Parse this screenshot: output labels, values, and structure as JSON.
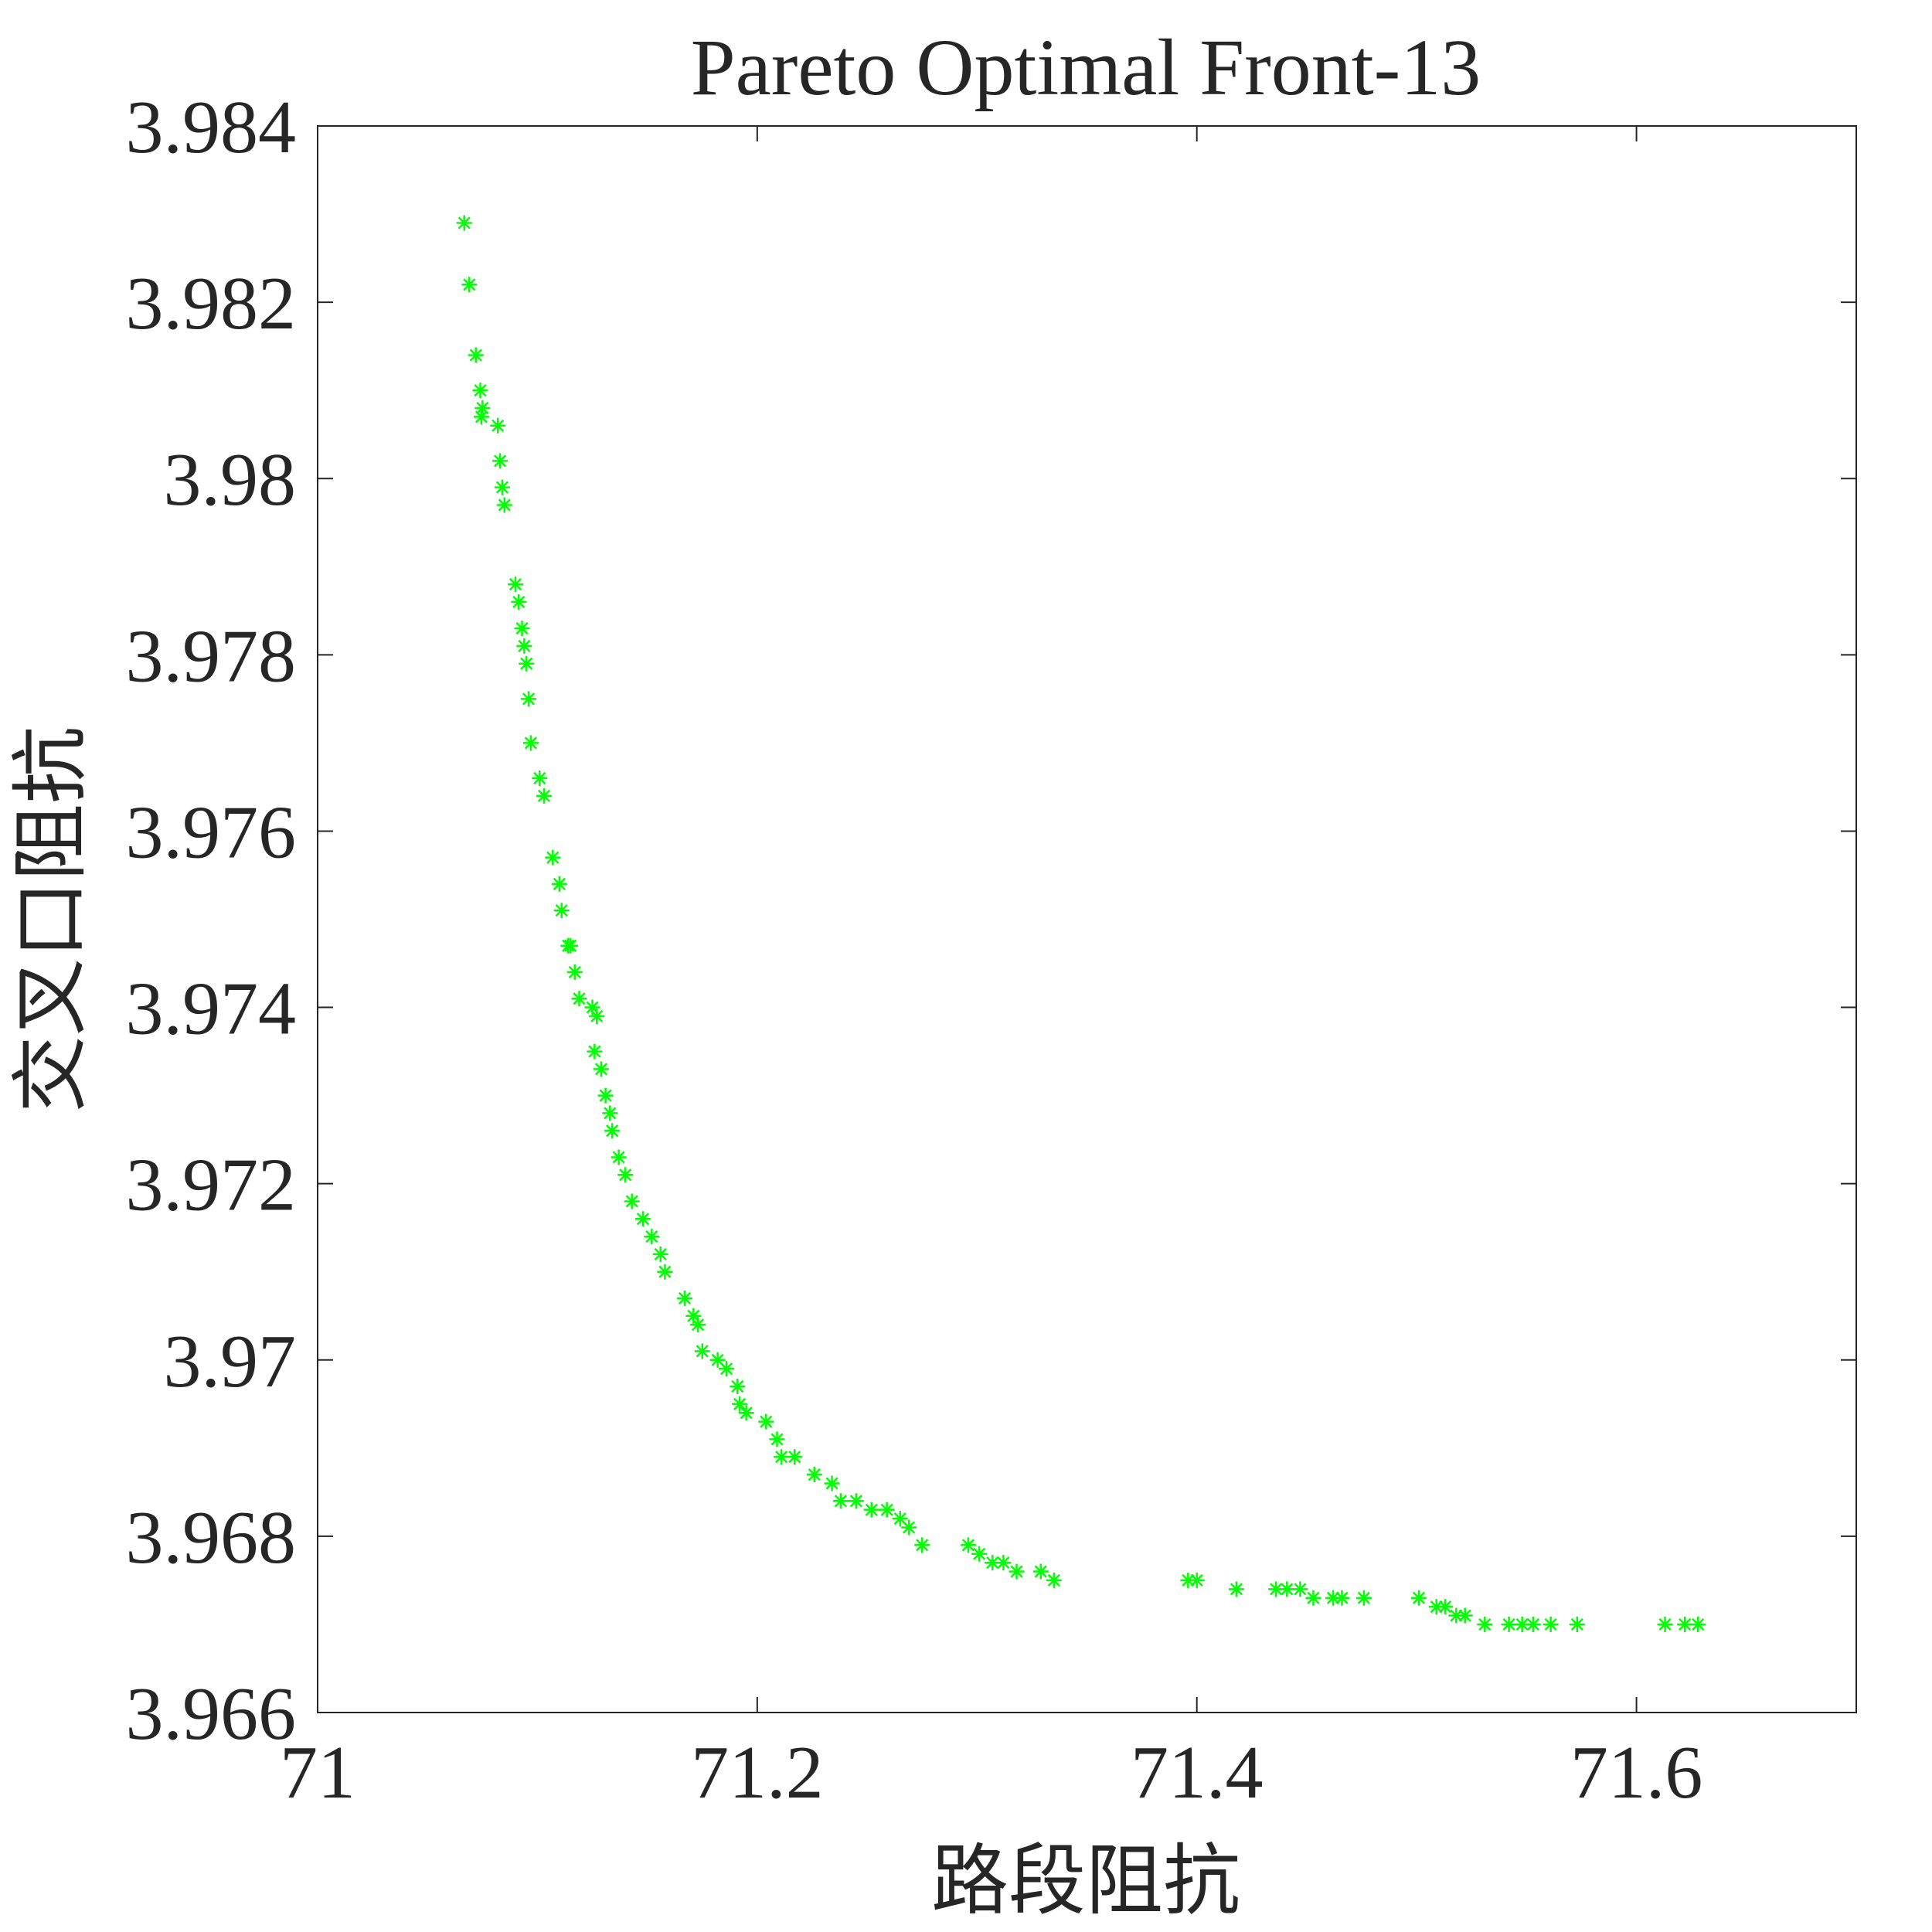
{
  "chart_data": {
    "type": "scatter",
    "title": "Pareto Optimal Front-13",
    "x_label": "路段阻抗",
    "y_label": "交叉口阻抗",
    "xlim": [
      71,
      71.7
    ],
    "xticks": [
      71,
      71.2,
      71.4,
      71.6
    ],
    "ylim": [
      3.966,
      3.984
    ],
    "yticks": [
      3.966,
      3.968,
      3.97,
      3.972,
      3.974,
      3.976,
      3.978,
      3.98,
      3.982,
      3.984
    ],
    "marker": "asterisk",
    "color": "#00ff00",
    "grid": false,
    "box": true,
    "x": [
      71.0667,
      71.069,
      71.072,
      71.074,
      71.075,
      71.0745,
      71.082,
      71.083,
      71.084,
      71.085,
      71.09,
      71.0915,
      71.093,
      71.094,
      71.095,
      71.096,
      71.097,
      71.101,
      71.103,
      71.107,
      71.11,
      71.111,
      71.114,
      71.115,
      71.117,
      71.119,
      71.125,
      71.127,
      71.126,
      71.129,
      71.131,
      71.133,
      71.134,
      71.137,
      71.14,
      71.143,
      71.148,
      71.152,
      71.156,
      71.158,
      71.167,
      71.171,
      71.173,
      71.175,
      71.182,
      71.186,
      71.191,
      71.192,
      71.195,
      71.204,
      71.209,
      71.211,
      71.217,
      71.226,
      71.234,
      71.238,
      71.245,
      71.252,
      71.259,
      71.265,
      71.269,
      71.275,
      71.296,
      71.301,
      71.307,
      71.312,
      71.318,
      71.329,
      71.335,
      71.396,
      71.4,
      71.418,
      71.436,
      71.441,
      71.447,
      71.453,
      71.462,
      71.466,
      71.476,
      71.501,
      71.509,
      71.513,
      71.518,
      71.522,
      71.531,
      71.542,
      71.548,
      71.553,
      71.561,
      71.573,
      71.613,
      71.622,
      71.628
    ],
    "y": [
      3.9829,
      3.9822,
      3.9814,
      3.981,
      3.9808,
      3.9807,
      3.9806,
      3.9802,
      3.9799,
      3.9797,
      3.9788,
      3.9786,
      3.9783,
      3.9781,
      3.9779,
      3.9775,
      3.977,
      3.9766,
      3.9764,
      3.9757,
      3.9754,
      3.9751,
      3.9747,
      3.9747,
      3.9744,
      3.9741,
      3.974,
      3.9739,
      3.9735,
      3.9733,
      3.973,
      3.9728,
      3.9726,
      3.9723,
      3.9721,
      3.9718,
      3.9716,
      3.9714,
      3.9712,
      3.971,
      3.9707,
      3.9705,
      3.9704,
      3.9701,
      3.97,
      3.9699,
      3.9697,
      3.9695,
      3.9694,
      3.9693,
      3.9691,
      3.9689,
      3.9689,
      3.9687,
      3.9686,
      3.9684,
      3.9684,
      3.9683,
      3.9683,
      3.9682,
      3.9681,
      3.9679,
      3.9679,
      3.9678,
      3.9677,
      3.9677,
      3.9676,
      3.9676,
      3.9675,
      3.9675,
      3.9675,
      3.9674,
      3.9674,
      3.9674,
      3.9674,
      3.9673,
      3.9673,
      3.9673,
      3.9673,
      3.9673,
      3.9672,
      3.9672,
      3.9671,
      3.9671,
      3.967,
      3.967,
      3.967,
      3.967,
      3.967,
      3.967,
      3.967,
      3.967,
      3.967
    ]
  }
}
